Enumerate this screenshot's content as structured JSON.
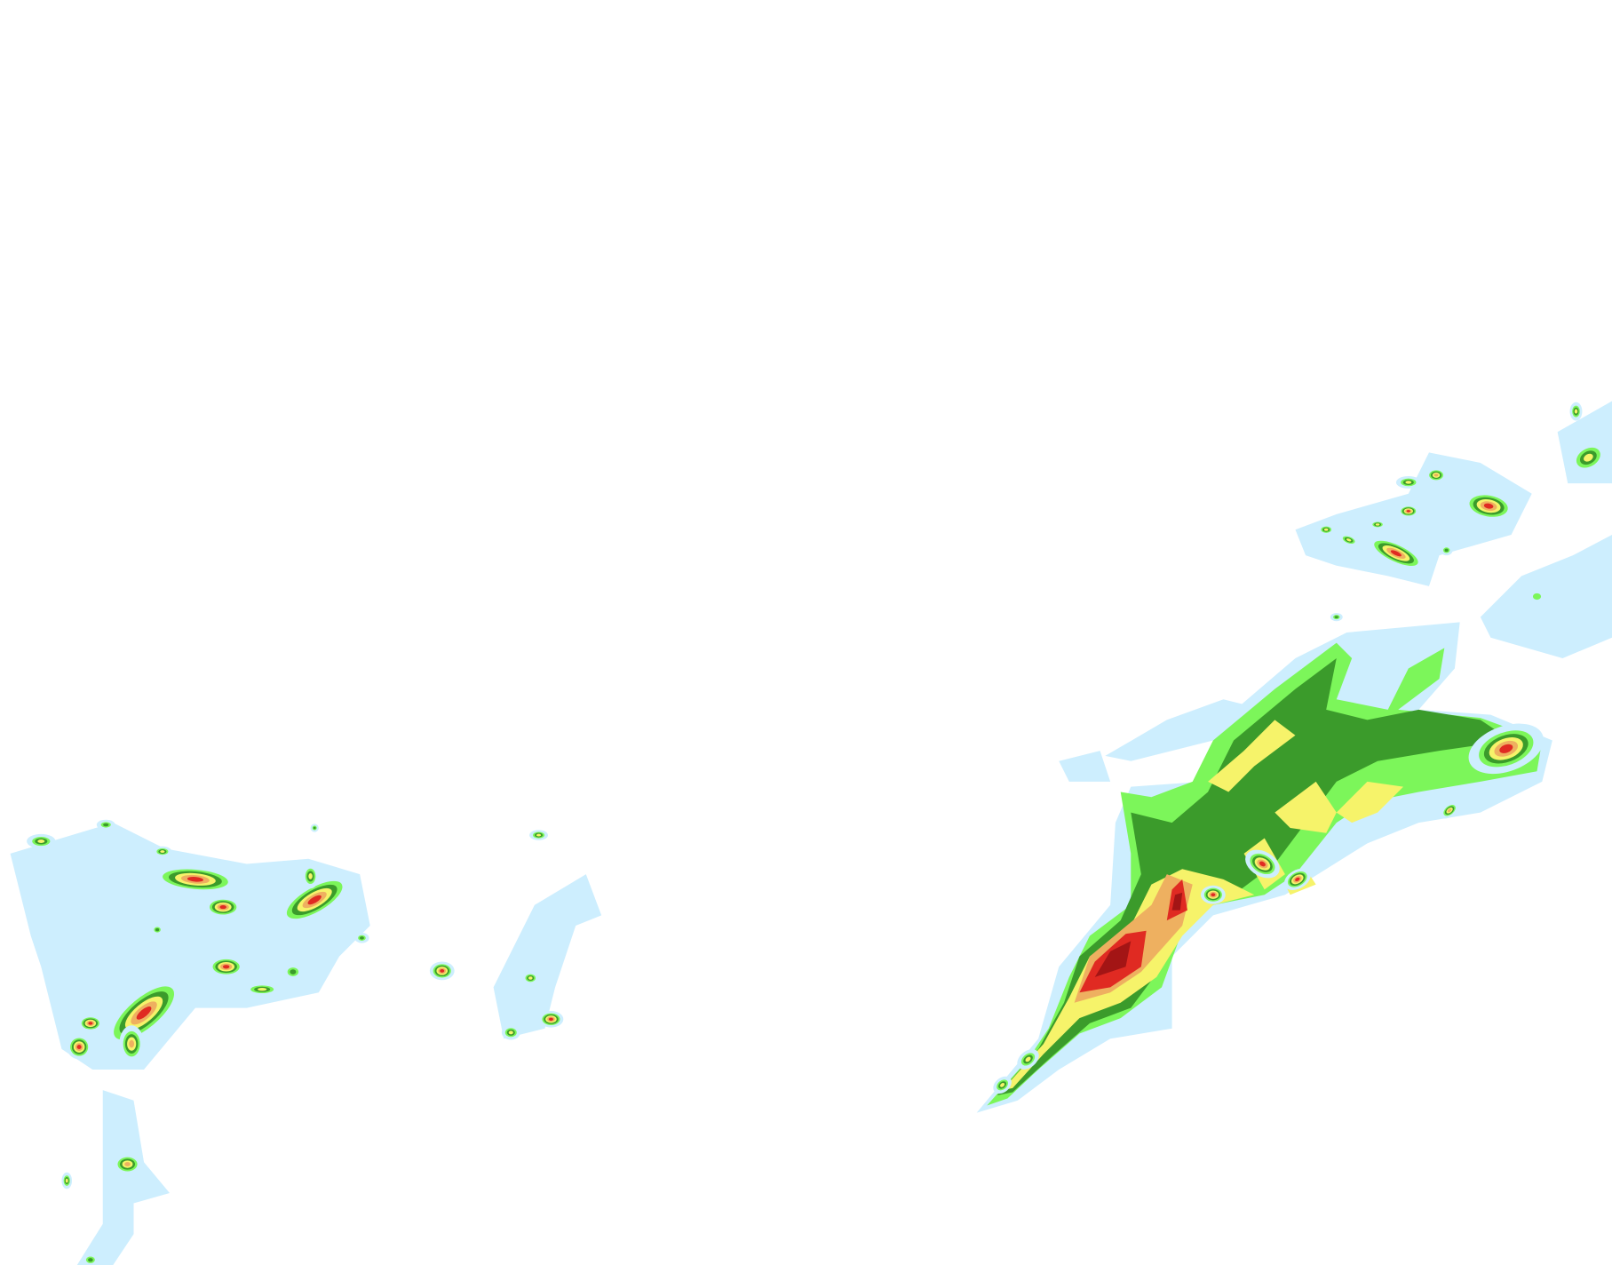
{
  "map": {
    "type": "weather-radar-reflectivity-overlay",
    "background": "#ffffff",
    "intensity_colors": {
      "very_light": "#cdeefe",
      "light": "#5cb8ee",
      "moderate_low": "#7cf65a",
      "moderate": "#3b9b2b",
      "heavy_low": "#f6f36a",
      "heavy": "#eeb060",
      "intense": "#e02a22",
      "extreme": "#a31515"
    }
  }
}
